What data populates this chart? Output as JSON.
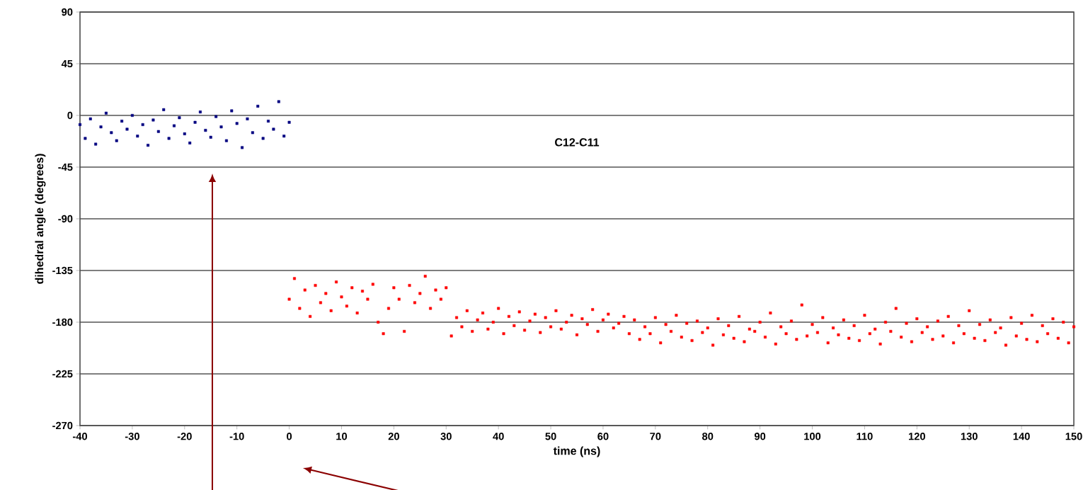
{
  "chart_data": {
    "type": "scatter",
    "xlabel": "time (ns)",
    "ylabel": "dihedral angle (degrees)",
    "annotations": [
      "C12-C11"
    ],
    "xlim": [
      -40,
      150
    ],
    "xticks": [
      -40,
      -30,
      -20,
      -10,
      0,
      10,
      20,
      30,
      40,
      50,
      60,
      70,
      80,
      90,
      100,
      110,
      120,
      130,
      140,
      150
    ],
    "ylim": [
      -270,
      90
    ],
    "yticks": [
      -270,
      -225,
      -180,
      -135,
      -90,
      -45,
      0,
      45,
      90
    ],
    "grid": "y",
    "marker": "square",
    "series": [
      {
        "color": "#000080",
        "x": [
          -40,
          -39,
          -38,
          -37,
          -36,
          -35,
          -34,
          -33,
          -32,
          -31,
          -30,
          -29,
          -28,
          -27,
          -26,
          -25,
          -24,
          -23,
          -22,
          -21,
          -20,
          -19,
          -18,
          -17,
          -16,
          -15,
          -14,
          -13,
          -12,
          -11,
          -10,
          -9,
          -8,
          -7,
          -6,
          -5,
          -4,
          -3,
          -2,
          -1,
          0
        ],
        "values": [
          -8,
          -20,
          -3,
          -25,
          -10,
          2,
          -15,
          -22,
          -5,
          -12,
          0,
          -18,
          -8,
          -26,
          -4,
          -14,
          5,
          -20,
          -9,
          -2,
          -16,
          -24,
          -6,
          3,
          -13,
          -19,
          -1,
          -10,
          -22,
          4,
          -7,
          -28,
          -3,
          -15,
          8,
          -20,
          -5,
          -12,
          12,
          -18,
          -6
        ]
      },
      {
        "color": "#ff0000",
        "x": [
          0,
          1,
          2,
          3,
          4,
          5,
          6,
          7,
          8,
          9,
          10,
          11,
          12,
          13,
          14,
          15,
          16,
          17,
          18,
          19,
          20,
          21,
          22,
          23,
          24,
          25,
          26,
          27,
          28,
          29,
          30,
          31,
          32,
          33,
          34,
          35,
          36,
          37,
          38,
          39,
          40,
          41,
          42,
          43,
          44,
          45,
          46,
          47,
          48,
          49,
          50,
          51,
          52,
          53,
          54,
          55,
          56,
          57,
          58,
          59,
          60,
          61,
          62,
          63,
          64,
          65,
          66,
          67,
          68,
          69,
          70,
          71,
          72,
          73,
          74,
          75,
          76,
          77,
          78,
          79,
          80,
          81,
          82,
          83,
          84,
          85,
          86,
          87,
          88,
          89,
          90,
          91,
          92,
          93,
          94,
          95,
          96,
          97,
          98,
          99,
          100,
          101,
          102,
          103,
          104,
          105,
          106,
          107,
          108,
          109,
          110,
          111,
          112,
          113,
          114,
          115,
          116,
          117,
          118,
          119,
          120,
          121,
          122,
          123,
          124,
          125,
          126,
          127,
          128,
          129,
          130,
          131,
          132,
          133,
          134,
          135,
          136,
          137,
          138,
          139,
          140,
          141,
          142,
          143,
          144,
          145,
          146,
          147,
          148,
          149,
          150
        ],
        "values": [
          -160,
          -142,
          -168,
          -152,
          -175,
          -148,
          -163,
          -155,
          -170,
          -145,
          -158,
          -166,
          -150,
          -172,
          -153,
          -160,
          -147,
          -180,
          -190,
          -168,
          -150,
          -160,
          -188,
          -148,
          -163,
          -155,
          -140,
          -168,
          -152,
          -160,
          -150,
          -192,
          -176,
          -184,
          -170,
          -188,
          -178,
          -172,
          -186,
          -180,
          -168,
          -190,
          -175,
          -183,
          -171,
          -187,
          -179,
          -173,
          -189,
          -176,
          -184,
          -170,
          -186,
          -180,
          -174,
          -191,
          -177,
          -182,
          -169,
          -188,
          -178,
          -173,
          -185,
          -181,
          -175,
          -190,
          -178,
          -195,
          -184,
          -190,
          -176,
          -198,
          -182,
          -188,
          -174,
          -193,
          -181,
          -196,
          -179,
          -189,
          -185,
          -200,
          -177,
          -191,
          -183,
          -194,
          -175,
          -197,
          -186,
          -188,
          -180,
          -193,
          -172,
          -199,
          -184,
          -190,
          -179,
          -195,
          -165,
          -192,
          -182,
          -189,
          -176,
          -198,
          -185,
          -191,
          -178,
          -194,
          -183,
          -196,
          -174,
          -190,
          -186,
          -199,
          -180,
          -188,
          -168,
          -193,
          -181,
          -197,
          -177,
          -189,
          -184,
          -195,
          -179,
          -192,
          -175,
          -198,
          -183,
          -190,
          -170,
          -194,
          -182,
          -196,
          -178,
          -189,
          -185,
          -200,
          -176,
          -192,
          -181,
          -195,
          -174,
          -197,
          -183,
          -190,
          -177,
          -194,
          -180,
          -198,
          -184
        ]
      }
    ]
  }
}
